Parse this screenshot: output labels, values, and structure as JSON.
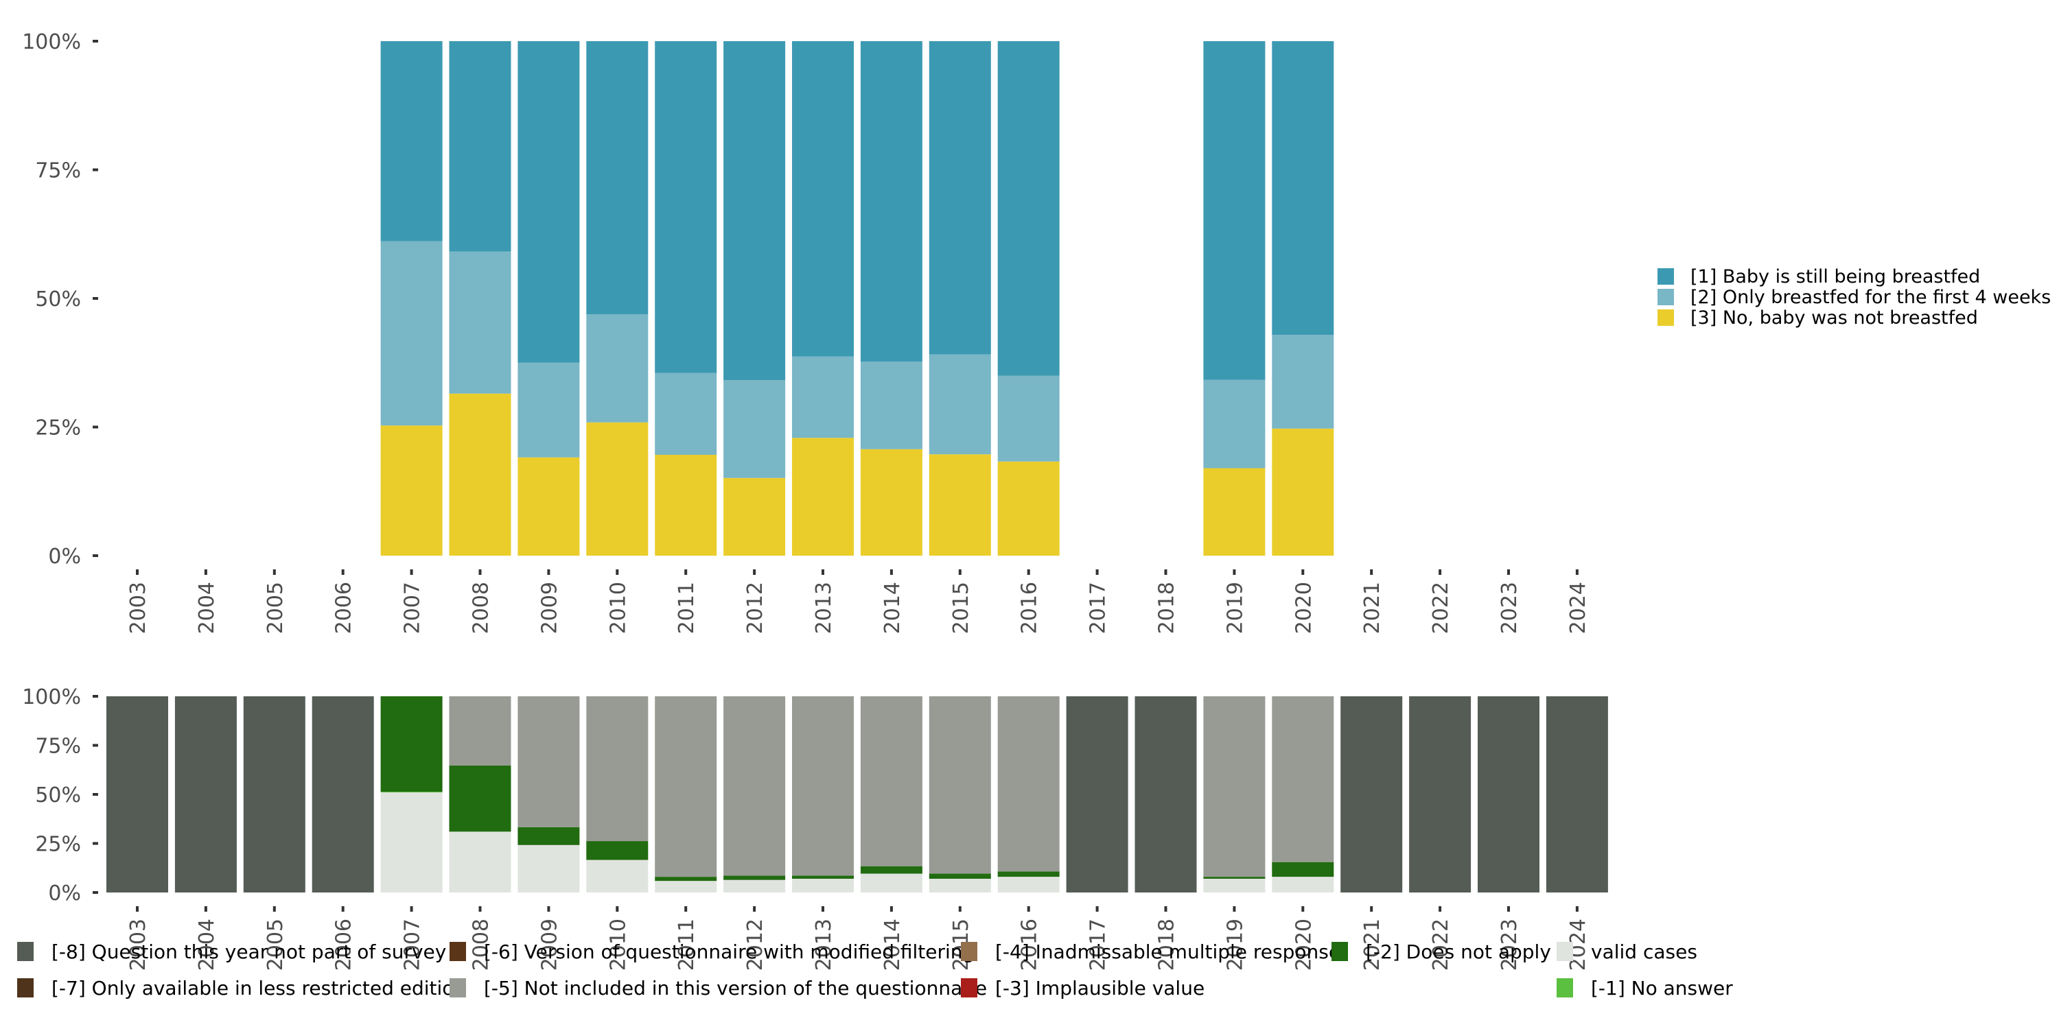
{
  "chart_data": [
    {
      "type": "bar",
      "stacked": true,
      "percent": true,
      "title": "",
      "xlabel": "",
      "ylabel": "",
      "ylim": [
        0,
        100
      ],
      "yticks": [
        "0%",
        "25%",
        "50%",
        "75%",
        "100%"
      ],
      "grid": false,
      "legend_position": "right",
      "categories": [
        "2003",
        "2004",
        "2005",
        "2006",
        "2007",
        "2008",
        "2009",
        "2010",
        "2011",
        "2012",
        "2013",
        "2014",
        "2015",
        "2016",
        "2017",
        "2018",
        "2019",
        "2020",
        "2021",
        "2022",
        "2023",
        "2024"
      ],
      "series": [
        {
          "name": "[3] No, baby was not breastfed",
          "color": "#EACD2B",
          "values": [
            null,
            null,
            null,
            null,
            25.3,
            31.5,
            19.1,
            25.9,
            19.6,
            15.1,
            22.9,
            20.7,
            19.7,
            18.3,
            null,
            null,
            17.0,
            24.7,
            null,
            null,
            null,
            null
          ]
        },
        {
          "name": "[2] Only breastfed for the first 4 weeks",
          "color": "#79B6C6",
          "values": [
            null,
            null,
            null,
            null,
            35.8,
            27.6,
            18.4,
            21.0,
            15.9,
            19.0,
            15.8,
            17.0,
            19.4,
            16.7,
            null,
            null,
            17.2,
            18.2,
            null,
            null,
            null,
            null
          ]
        },
        {
          "name": "[1] Baby is still being breastfed",
          "color": "#3C99B2",
          "values": [
            null,
            null,
            null,
            null,
            38.9,
            40.9,
            62.5,
            53.1,
            64.5,
            65.9,
            61.3,
            62.3,
            60.9,
            65.0,
            null,
            null,
            65.8,
            57.1,
            null,
            null,
            null,
            null
          ]
        }
      ],
      "legend_order": [
        "[1] Baby is still being breastfed",
        "[2] Only breastfed for the first 4 weeks",
        "[3] No, baby was not breastfed"
      ]
    },
    {
      "type": "bar",
      "stacked": true,
      "percent": true,
      "title": "",
      "xlabel": "",
      "ylabel": "",
      "ylim": [
        0,
        100
      ],
      "yticks": [
        "0%",
        "25%",
        "50%",
        "75%",
        "100%"
      ],
      "grid": false,
      "legend_position": "bottom",
      "categories": [
        "2003",
        "2004",
        "2005",
        "2006",
        "2007",
        "2008",
        "2009",
        "2010",
        "2011",
        "2012",
        "2013",
        "2014",
        "2015",
        "2016",
        "2017",
        "2018",
        "2019",
        "2020",
        "2021",
        "2022",
        "2023",
        "2024"
      ],
      "series": [
        {
          "name": "valid cases",
          "color": "#E0E4DF",
          "values": [
            0,
            0,
            0,
            0,
            51.0,
            31.0,
            24.2,
            16.6,
            5.9,
            6.4,
            7.0,
            9.6,
            7.0,
            8.0,
            0,
            0,
            7.0,
            8.0,
            0,
            0,
            0,
            0
          ]
        },
        {
          "name": "[-1] No answer",
          "color": "#5BBF3F",
          "values": [
            0,
            0,
            0,
            0,
            0.4,
            0,
            0,
            0,
            0,
            0,
            0,
            0,
            0,
            0,
            0,
            0,
            0,
            0,
            0,
            0,
            0,
            0
          ]
        },
        {
          "name": "[-2] Does not apply",
          "color": "#216B10",
          "values": [
            0,
            0,
            0,
            0,
            48.6,
            33.7,
            9.1,
            9.6,
            2.1,
            2.2,
            1.6,
            3.8,
            2.6,
            2.7,
            0,
            0,
            1.0,
            7.5,
            0,
            0,
            0,
            0
          ]
        },
        {
          "name": "[-3] Implausible value",
          "color": "#A91D1A",
          "values": [
            0,
            0,
            0,
            0,
            0,
            0,
            0,
            0,
            0,
            0,
            0,
            0,
            0,
            0,
            0,
            0,
            0,
            0,
            0,
            0,
            0,
            0
          ]
        },
        {
          "name": "[-4] Inadmissable multiple response",
          "color": "#936F4C",
          "values": [
            0,
            0,
            0,
            0,
            0,
            0,
            0,
            0,
            0,
            0,
            0,
            0,
            0,
            0,
            0,
            0,
            0,
            0,
            0,
            0,
            0,
            0
          ]
        },
        {
          "name": "[-5] Not included in this version of the questionnaire",
          "color": "#989B94",
          "values": [
            0,
            0,
            0,
            0,
            0,
            35.3,
            66.7,
            73.8,
            92.0,
            91.4,
            91.4,
            86.6,
            90.4,
            89.3,
            0,
            0,
            92.0,
            84.5,
            0,
            0,
            0,
            0
          ]
        },
        {
          "name": "[-6] Version of questionnaire with modified filtering",
          "color": "#5A3517",
          "values": [
            0,
            0,
            0,
            0,
            0,
            0,
            0,
            0,
            0,
            0,
            0,
            0,
            0,
            0,
            0,
            0,
            0,
            0,
            0,
            0,
            0,
            0
          ]
        },
        {
          "name": "[-7] Only available in less restricted edition",
          "color": "#4F331B",
          "values": [
            0,
            0,
            0,
            0,
            0,
            0,
            0,
            0,
            0,
            0,
            0,
            0,
            0,
            0,
            0,
            0,
            0,
            0,
            0,
            0,
            0,
            0
          ]
        },
        {
          "name": "[-8] Question this year not part of survey",
          "color": "#545C55",
          "values": [
            100,
            100,
            100,
            100,
            0,
            0,
            0,
            0,
            0,
            0,
            0,
            0,
            0,
            0,
            100,
            100,
            0,
            0,
            100,
            100,
            100,
            100
          ]
        }
      ],
      "legend_rows": [
        [
          "[-8] Question this year not part of survey",
          "[-6] Version of questionnaire with modified filtering",
          "[-4] Inadmissable multiple response",
          "[-2] Does not apply",
          "valid cases"
        ],
        [
          "[-7] Only available in less restricted edition",
          "[-5] Not included in this version of the questionnaire",
          "[-3] Implausible value",
          null,
          "[-1] No answer"
        ]
      ]
    }
  ]
}
